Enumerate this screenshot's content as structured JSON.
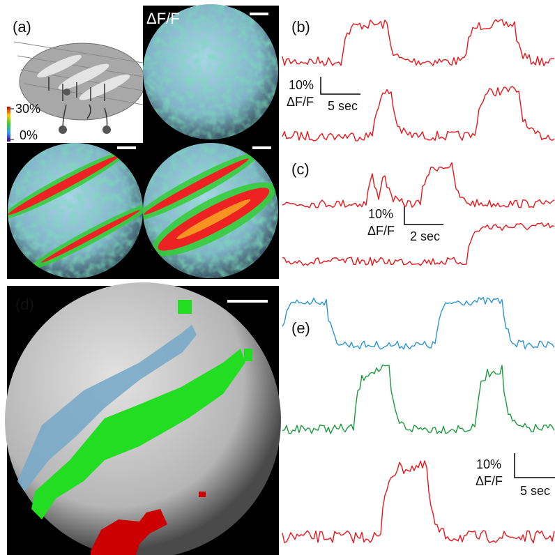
{
  "panels": {
    "a": {
      "label": "(a)",
      "image_label": "ΔF/F",
      "colorbar": {
        "max": "30%",
        "min": "0%"
      }
    },
    "b": {
      "label": "(b)",
      "scale_bar": {
        "amplitude": "10%",
        "unit": "ΔF/F",
        "time": "5 sec"
      }
    },
    "c": {
      "label": "(c)",
      "scale_bar": {
        "amplitude": "10%",
        "unit": "ΔF/F",
        "time": "2 sec"
      }
    },
    "d": {
      "label": "(d)"
    },
    "e": {
      "label": "(e)",
      "scale_bar": {
        "amplitude": "10%",
        "unit": "ΔF/F",
        "time": "5 sec"
      }
    }
  }
}
